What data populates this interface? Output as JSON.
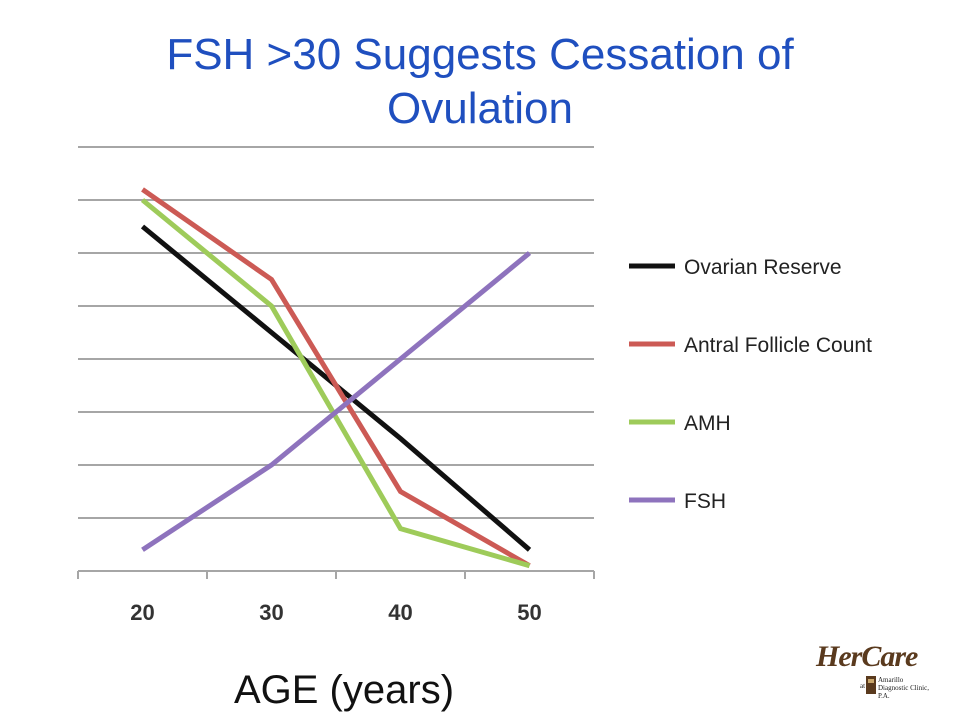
{
  "title": {
    "line1": "FSH >30 Suggests Cessation of",
    "line2": "Ovulation"
  },
  "chart_data": {
    "type": "line",
    "x": [
      20,
      30,
      40,
      50
    ],
    "xlabel": "AGE (years)",
    "ylabel": "",
    "xlim": [
      15,
      55
    ],
    "ylim": [
      0,
      8
    ],
    "yticks_labeled": false,
    "grid": true,
    "legend_position": "right",
    "series": [
      {
        "name": "Ovarian Reserve",
        "color": "#111111",
        "values": [
          6.5,
          4.5,
          2.5,
          0.4
        ]
      },
      {
        "name": "Antral Follicle Count",
        "color": "#cc5a55",
        "values": [
          7.2,
          5.5,
          1.5,
          0.1
        ]
      },
      {
        "name": "AMH",
        "color": "#9ecb5a",
        "values": [
          7.0,
          5.0,
          0.8,
          0.1
        ]
      },
      {
        "name": "FSH",
        "color": "#8e73bd",
        "values": [
          0.4,
          2.0,
          4.0,
          6.0
        ]
      }
    ]
  },
  "logo": {
    "main": "HerCare",
    "at": "at",
    "sub": "Amarillo Diagnostic Clinic, P.A."
  }
}
